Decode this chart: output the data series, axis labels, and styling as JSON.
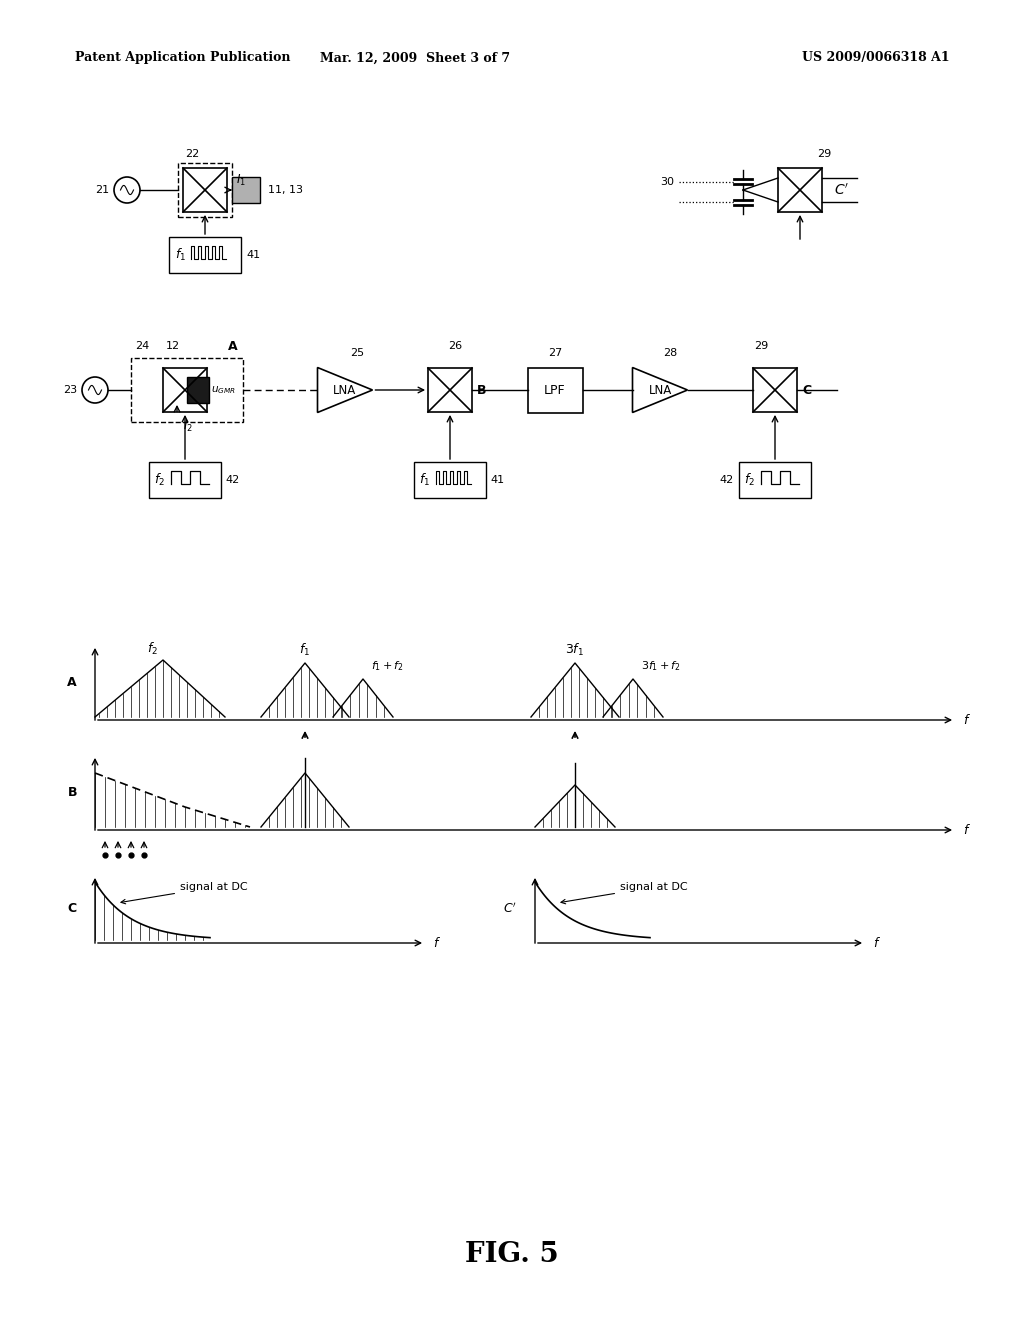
{
  "bg_color": "#ffffff",
  "header_left": "Patent Application Publication",
  "header_center": "Mar. 12, 2009  Sheet 3 of 7",
  "header_right": "US 2009/0066318 A1",
  "fig_label": "FIG. 5"
}
